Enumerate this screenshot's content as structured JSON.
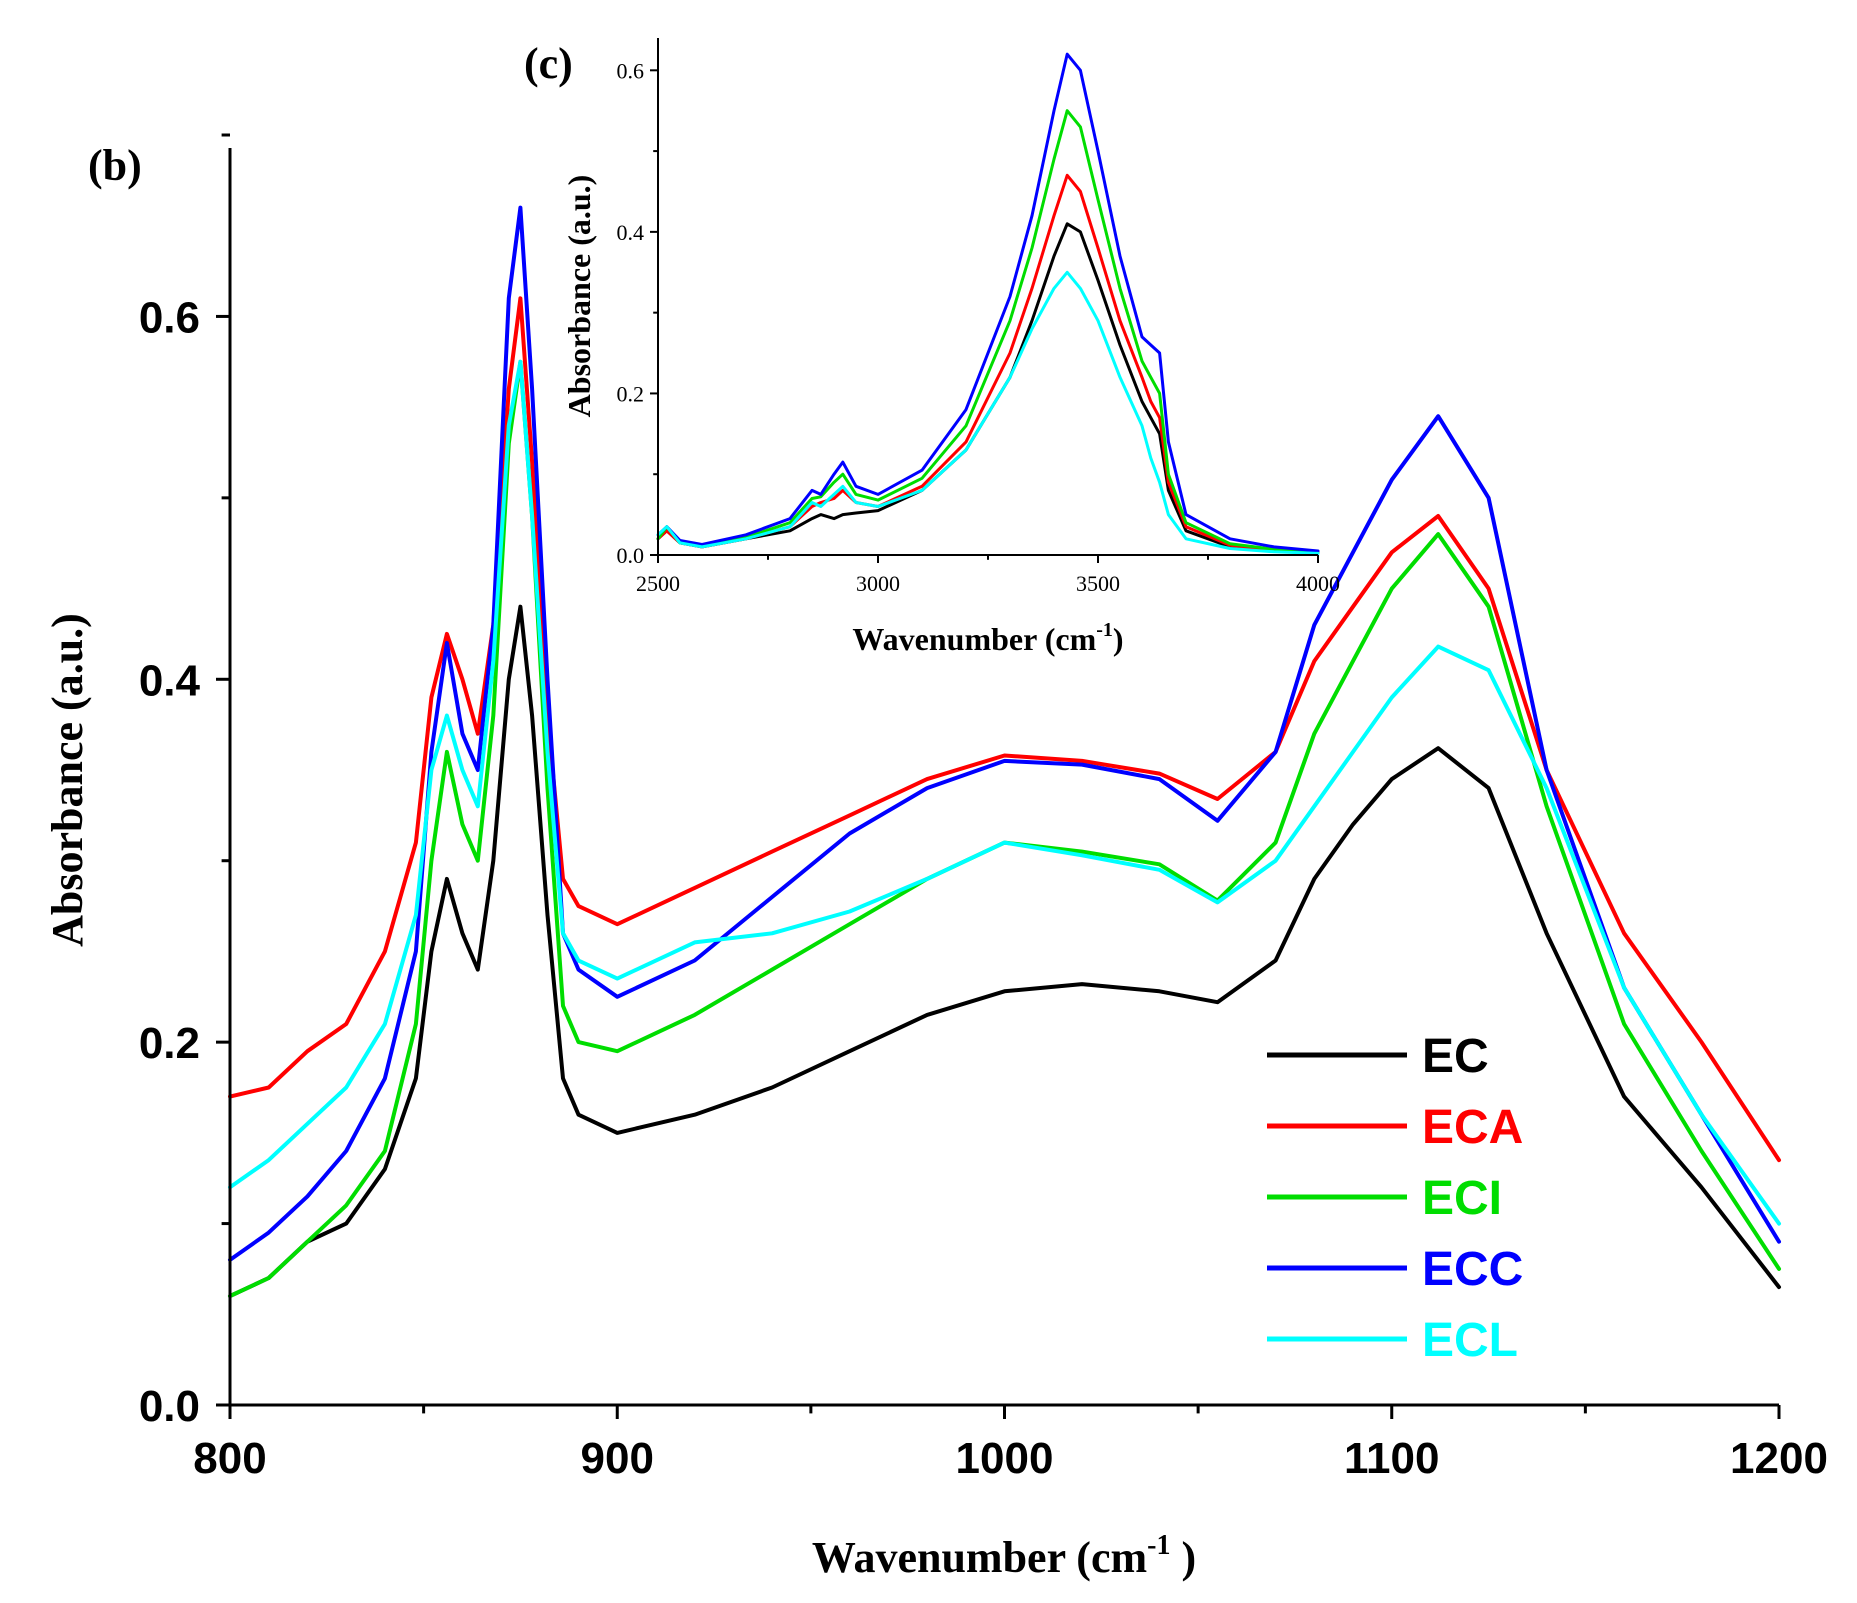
{
  "chart_data": [
    {
      "id": "main",
      "type": "line",
      "panel_label": "(b)",
      "title": "",
      "xlabel": "Wavenumber (cm",
      "xlabel_sup": "-1",
      "xlabel_close": " )",
      "ylabel": "Absorbance (a.u.)",
      "xlim": [
        800,
        1200
      ],
      "ylim": [
        0,
        0.7
      ],
      "xticks": [
        800,
        900,
        1000,
        1100,
        1200
      ],
      "xtick_labels": [
        "800",
        "900",
        "1000",
        "1100",
        "1200"
      ],
      "yticks": [
        0.0,
        0.2,
        0.4,
        0.6
      ],
      "ytick_labels": [
        "0.0",
        "0.2",
        "0.4",
        "0.6"
      ],
      "legend_position": "bottom-right",
      "x": [
        800,
        810,
        820,
        830,
        840,
        848,
        852,
        856,
        860,
        864,
        868,
        872,
        875,
        878,
        882,
        886,
        890,
        900,
        920,
        940,
        960,
        980,
        1000,
        1020,
        1040,
        1055,
        1070,
        1080,
        1090,
        1100,
        1112,
        1125,
        1140,
        1160,
        1180,
        1200
      ],
      "series": [
        {
          "name": "EC",
          "color": "#000000",
          "values": [
            0.06,
            0.07,
            0.09,
            0.1,
            0.13,
            0.18,
            0.25,
            0.29,
            0.26,
            0.24,
            0.3,
            0.4,
            0.44,
            0.38,
            0.27,
            0.18,
            0.16,
            0.15,
            0.16,
            0.175,
            0.195,
            0.215,
            0.228,
            0.232,
            0.228,
            0.222,
            0.245,
            0.29,
            0.32,
            0.345,
            0.362,
            0.34,
            0.26,
            0.17,
            0.12,
            0.065
          ]
        },
        {
          "name": "ECA",
          "color": "#ff0000",
          "values": [
            0.17,
            0.175,
            0.195,
            0.21,
            0.25,
            0.31,
            0.39,
            0.425,
            0.4,
            0.37,
            0.43,
            0.56,
            0.61,
            0.52,
            0.38,
            0.29,
            0.275,
            0.265,
            0.285,
            0.305,
            0.325,
            0.345,
            0.358,
            0.355,
            0.348,
            0.334,
            0.36,
            0.41,
            0.44,
            0.47,
            0.49,
            0.45,
            0.35,
            0.26,
            0.2,
            0.135
          ]
        },
        {
          "name": "ECI",
          "color": "#00dd00",
          "values": [
            0.06,
            0.07,
            0.09,
            0.11,
            0.14,
            0.21,
            0.3,
            0.36,
            0.32,
            0.3,
            0.38,
            0.53,
            0.575,
            0.49,
            0.34,
            0.22,
            0.2,
            0.195,
            0.215,
            0.24,
            0.265,
            0.29,
            0.31,
            0.305,
            0.298,
            0.278,
            0.31,
            0.37,
            0.41,
            0.45,
            0.48,
            0.44,
            0.33,
            0.21,
            0.14,
            0.075
          ]
        },
        {
          "name": "ECC",
          "color": "#0000ff",
          "values": [
            0.08,
            0.095,
            0.115,
            0.14,
            0.18,
            0.25,
            0.36,
            0.42,
            0.37,
            0.35,
            0.43,
            0.61,
            0.66,
            0.56,
            0.4,
            0.26,
            0.24,
            0.225,
            0.245,
            0.28,
            0.315,
            0.34,
            0.355,
            0.353,
            0.345,
            0.322,
            0.36,
            0.43,
            0.47,
            0.51,
            0.545,
            0.5,
            0.35,
            0.23,
            0.16,
            0.09
          ]
        },
        {
          "name": "ECL",
          "color": "#00ffff",
          "values": [
            0.12,
            0.135,
            0.155,
            0.175,
            0.21,
            0.27,
            0.35,
            0.38,
            0.35,
            0.33,
            0.41,
            0.54,
            0.575,
            0.49,
            0.36,
            0.26,
            0.245,
            0.235,
            0.255,
            0.26,
            0.272,
            0.29,
            0.31,
            0.303,
            0.295,
            0.277,
            0.3,
            0.33,
            0.36,
            0.39,
            0.418,
            0.405,
            0.34,
            0.23,
            0.16,
            0.1
          ]
        }
      ]
    },
    {
      "id": "inset",
      "type": "line",
      "panel_label": "(c)",
      "title": "",
      "xlabel": "Wavenumber (cm",
      "xlabel_sup": "-1",
      "xlabel_close": ")",
      "ylabel": "Absorbance (a.u.)",
      "xlim": [
        2500,
        4000
      ],
      "ylim": [
        0,
        0.64
      ],
      "xticks": [
        2500,
        3000,
        3500,
        4000
      ],
      "xtick_labels": [
        "2500",
        "3000",
        "3500",
        "4000"
      ],
      "yticks": [
        0.0,
        0.2,
        0.4,
        0.6
      ],
      "ytick_labels": [
        "0.0",
        "0.2",
        "0.4",
        "0.6"
      ],
      "x": [
        2500,
        2520,
        2550,
        2600,
        2700,
        2800,
        2850,
        2870,
        2900,
        2920,
        2950,
        3000,
        3100,
        3200,
        3300,
        3350,
        3400,
        3430,
        3460,
        3500,
        3550,
        3600,
        3620,
        3640,
        3660,
        3700,
        3800,
        3900,
        4000
      ],
      "series": [
        {
          "name": "EC",
          "color": "#000000",
          "values": [
            0.02,
            0.03,
            0.015,
            0.01,
            0.02,
            0.03,
            0.045,
            0.05,
            0.045,
            0.05,
            0.052,
            0.055,
            0.08,
            0.13,
            0.22,
            0.29,
            0.37,
            0.41,
            0.4,
            0.34,
            0.26,
            0.19,
            0.17,
            0.15,
            0.08,
            0.03,
            0.01,
            0.005,
            0.003
          ]
        },
        {
          "name": "ECA",
          "color": "#ff0000",
          "values": [
            0.02,
            0.03,
            0.015,
            0.01,
            0.02,
            0.035,
            0.06,
            0.065,
            0.07,
            0.08,
            0.065,
            0.06,
            0.085,
            0.14,
            0.25,
            0.33,
            0.42,
            0.47,
            0.45,
            0.38,
            0.29,
            0.22,
            0.19,
            0.17,
            0.09,
            0.035,
            0.012,
            0.006,
            0.003
          ]
        },
        {
          "name": "ECI",
          "color": "#00dd00",
          "values": [
            0.02,
            0.035,
            0.015,
            0.012,
            0.022,
            0.04,
            0.07,
            0.072,
            0.09,
            0.1,
            0.075,
            0.068,
            0.095,
            0.16,
            0.29,
            0.38,
            0.49,
            0.55,
            0.53,
            0.44,
            0.33,
            0.24,
            0.22,
            0.2,
            0.1,
            0.04,
            0.014,
            0.007,
            0.004
          ]
        },
        {
          "name": "ECC",
          "color": "#0000ff",
          "values": [
            0.025,
            0.035,
            0.018,
            0.013,
            0.025,
            0.045,
            0.08,
            0.075,
            0.1,
            0.115,
            0.085,
            0.075,
            0.105,
            0.18,
            0.32,
            0.42,
            0.55,
            0.62,
            0.6,
            0.5,
            0.37,
            0.27,
            0.26,
            0.25,
            0.14,
            0.05,
            0.02,
            0.01,
            0.005
          ]
        },
        {
          "name": "ECL",
          "color": "#00ffff",
          "values": [
            0.025,
            0.035,
            0.015,
            0.01,
            0.02,
            0.035,
            0.065,
            0.06,
            0.075,
            0.085,
            0.065,
            0.06,
            0.08,
            0.13,
            0.22,
            0.28,
            0.33,
            0.35,
            0.33,
            0.29,
            0.22,
            0.16,
            0.12,
            0.09,
            0.05,
            0.02,
            0.008,
            0.004,
            0.002
          ]
        }
      ]
    }
  ]
}
